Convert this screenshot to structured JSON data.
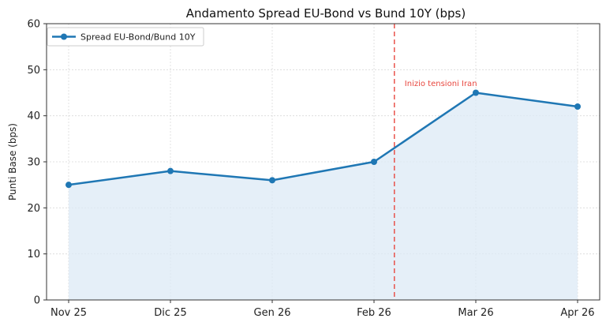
{
  "chart_data": {
    "type": "line",
    "title": "Andamento Spread EU-Bond vs Bund 10Y (bps)",
    "xlabel": "",
    "ylabel": "Punti Base (bps)",
    "categories": [
      "Nov 25",
      "Dic 25",
      "Gen 26",
      "Feb 26",
      "Mar 26",
      "Apr 26"
    ],
    "series": [
      {
        "name": "Spread EU-Bond/Bund 10Y",
        "values": [
          25,
          28,
          26,
          30,
          45,
          42
        ]
      }
    ],
    "ylim": [
      0,
      60
    ],
    "yticks": [
      "0",
      "10",
      "20",
      "30",
      "40",
      "50",
      "60"
    ],
    "grid": true,
    "legend_position": "top-left",
    "annotation": {
      "text": "Inizio tensioni Iran",
      "x_position": 3.2
    },
    "colors": {
      "line": "#1f77b4",
      "fill": "#dce9f5",
      "annotation": "#e8473f"
    }
  }
}
